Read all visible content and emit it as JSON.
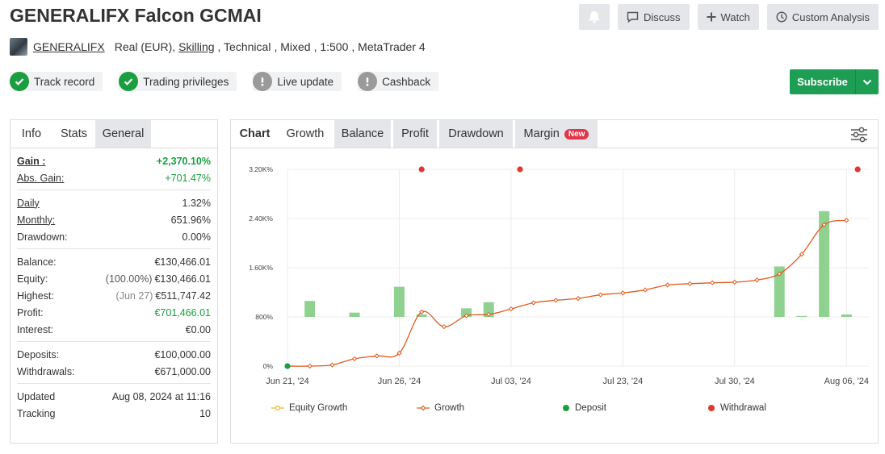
{
  "header": {
    "title": "GENERALIFX Falcon GCMAI",
    "buttons": {
      "discuss": "Discuss",
      "watch": "Watch",
      "custom_analysis": "Custom Analysis"
    }
  },
  "account": {
    "broker_name": "GENERALIFX",
    "type": "Real (EUR),",
    "broker_link": "Skilling",
    "system": ", Technical",
    "style": ", Mixed",
    "leverage": ", 1:500",
    "platform": ", MetaTrader 4"
  },
  "badges": [
    {
      "label": "Track record",
      "state": "verified"
    },
    {
      "label": "Trading privileges",
      "state": "verified"
    },
    {
      "label": "Live update",
      "state": "warning"
    },
    {
      "label": "Cashback",
      "state": "warning"
    }
  ],
  "subscribe_label": "Subscribe",
  "left_tabs": {
    "info": "Info",
    "stats": "Stats",
    "general": "General"
  },
  "stats": {
    "gain_label": "Gain :",
    "gain": "+2,370.10%",
    "abs_gain_label": "Abs. Gain:",
    "abs_gain": "+701.47%",
    "daily_label": "Daily",
    "daily": "1.32%",
    "monthly_label": "Monthly:",
    "monthly": "651.96%",
    "drawdown_label": "Drawdown:",
    "drawdown": "0.00%",
    "balance_label": "Balance:",
    "balance": "€130,466.01",
    "equity_label": "Equity:",
    "equity_pct": "(100.00%)",
    "equity": "€130,466.01",
    "highest_label": "Highest:",
    "highest_date": "(Jun 27)",
    "highest": "€511,747.42",
    "profit_label": "Profit:",
    "profit": "€701,466.01",
    "interest_label": "Interest:",
    "interest": "€0.00",
    "deposits_label": "Deposits:",
    "deposits": "€100,000.00",
    "withdrawals_label": "Withdrawals:",
    "withdrawals": "€671,000.00",
    "updated_label": "Updated",
    "updated": "Aug 08, 2024 at 11:16",
    "tracking_label": "Tracking",
    "tracking": "10"
  },
  "chart_tabs": {
    "chart": "Chart",
    "growth": "Growth",
    "balance": "Balance",
    "profit": "Profit",
    "drawdown": "Drawdown",
    "margin": "Margin",
    "new_badge": "New"
  },
  "colors": {
    "growth_line": "#e05a1f",
    "bars": "#8fd18f",
    "deposit": "#1a9e3f",
    "withdrawal": "#e0382f",
    "equity": "#f2b81b"
  },
  "chart_data": {
    "type": "line",
    "y_ticks": [
      "0%",
      "800%",
      "1.60K%",
      "2.40K%",
      "3.20K%"
    ],
    "y_range": [
      0,
      3200
    ],
    "x_ticks": [
      "Jun 21, '24",
      "Jun 26, '24",
      "Jul 03, '24",
      "Jul 23, '24",
      "Jul 30, '24",
      "Aug 06, '24"
    ],
    "x_range": [
      0,
      26
    ],
    "x_tick_positions": [
      0,
      5,
      10,
      15,
      20,
      25
    ],
    "growth": [
      [
        0,
        0
      ],
      [
        1,
        0
      ],
      [
        2,
        20
      ],
      [
        3,
        120
      ],
      [
        4,
        165
      ],
      [
        5,
        210
      ],
      [
        6,
        880
      ],
      [
        7,
        640
      ],
      [
        8,
        820
      ],
      [
        9,
        840
      ],
      [
        10,
        930
      ],
      [
        11,
        1030
      ],
      [
        12,
        1070
      ],
      [
        13,
        1100
      ],
      [
        14,
        1160
      ],
      [
        15,
        1190
      ],
      [
        16,
        1240
      ],
      [
        17,
        1320
      ],
      [
        18,
        1340
      ],
      [
        19,
        1355
      ],
      [
        20,
        1365
      ],
      [
        21,
        1400
      ],
      [
        22,
        1500
      ],
      [
        23,
        1820
      ],
      [
        24,
        2300
      ],
      [
        25,
        2370
      ]
    ],
    "bars": [
      [
        1,
        260
      ],
      [
        3,
        70
      ],
      [
        5,
        490
      ],
      [
        6,
        40
      ],
      [
        8,
        140
      ],
      [
        9,
        240
      ],
      [
        22,
        820
      ],
      [
        23,
        15
      ],
      [
        24,
        1720
      ],
      [
        25,
        40
      ]
    ],
    "deposits": [
      [
        0,
        0
      ]
    ],
    "withdrawals": [
      [
        6,
        3200
      ],
      [
        10.4,
        3200
      ],
      [
        25.5,
        3200
      ]
    ],
    "legend": [
      "Equity Growth",
      "Growth",
      "Deposit",
      "Withdrawal"
    ]
  }
}
